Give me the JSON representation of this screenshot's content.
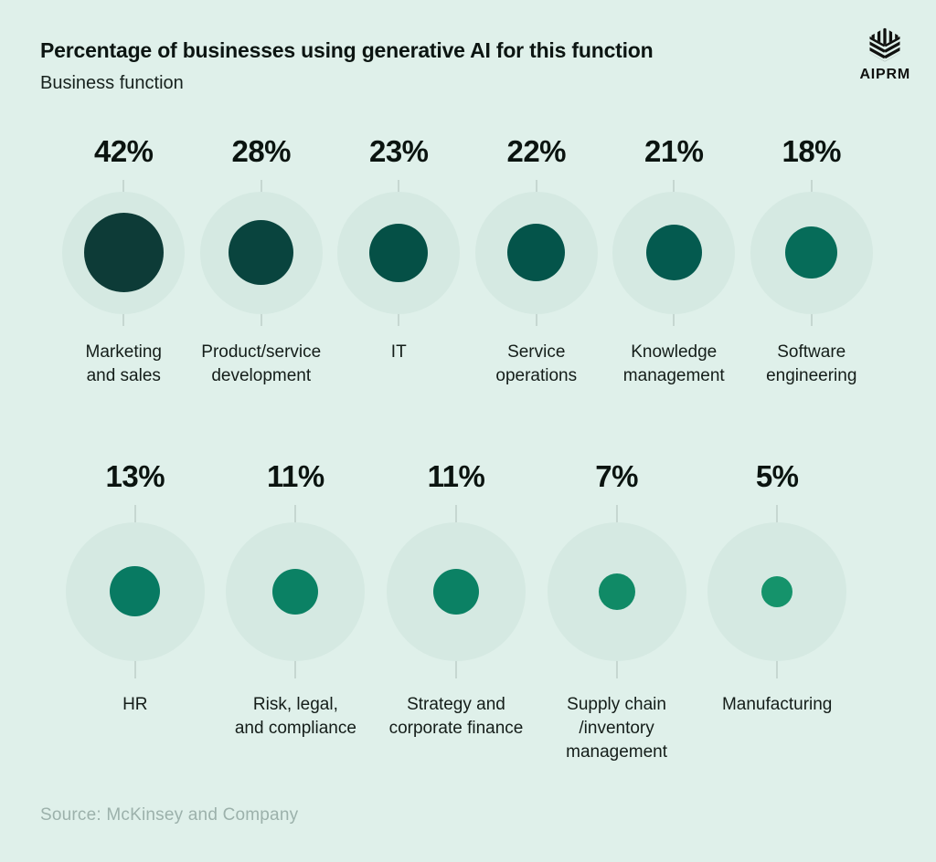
{
  "header": {
    "title": "Percentage of businesses using generative AI for this function",
    "subtitle": "Business function",
    "brand": "AIPRM"
  },
  "chart_data": {
    "type": "bubble",
    "title": "Percentage of businesses using generative AI for this function",
    "xlabel": "Business function",
    "unit": "%",
    "value_range": [
      0,
      100
    ],
    "legend": "none",
    "palette": {
      "background": "#dff0ea",
      "bubble_outer": "#d5e9e2",
      "tick_line": "#c6d7d1",
      "text": "#0c1512",
      "source_text": "#9cb1ab"
    },
    "rows": [
      {
        "items": [
          {
            "label": "Marketing and sales",
            "label_lines": "Marketing\nand sales",
            "value": 42,
            "value_label": "42%",
            "color": "#0d3b37"
          },
          {
            "label": "Product/service development",
            "label_lines": "Product/service\ndevelopment",
            "value": 28,
            "value_label": "28%",
            "color": "#09443e"
          },
          {
            "label": "IT",
            "label_lines": "IT",
            "value": 23,
            "value_label": "23%",
            "color": "#055046"
          },
          {
            "label": "Service operations",
            "label_lines": "Service\noperations",
            "value": 22,
            "value_label": "22%",
            "color": "#04544a"
          },
          {
            "label": "Knowledge management",
            "label_lines": "Knowledge\nmanagement",
            "value": 21,
            "value_label": "21%",
            "color": "#045a4f"
          },
          {
            "label": "Software engineering",
            "label_lines": "Software\nengineering",
            "value": 18,
            "value_label": "18%",
            "color": "#066c59"
          }
        ]
      },
      {
        "items": [
          {
            "label": "HR",
            "label_lines": "HR",
            "value": 13,
            "value_label": "13%",
            "color": "#087a62"
          },
          {
            "label": "Risk, legal, and compliance",
            "label_lines": "Risk, legal,\nand compliance",
            "value": 11,
            "value_label": "11%",
            "color": "#0b8164"
          },
          {
            "label": "Strategy and corporate finance",
            "label_lines": "Strategy and\ncorporate finance",
            "value": 11,
            "value_label": "11%",
            "color": "#0b8164"
          },
          {
            "label": "Supply chain /inventory management",
            "label_lines": "Supply chain\n/inventory\nmanagement",
            "value": 7,
            "value_label": "7%",
            "color": "#108a66"
          },
          {
            "label": "Manufacturing",
            "label_lines": "Manufacturing",
            "value": 5,
            "value_label": "5%",
            "color": "#15936b"
          }
        ]
      }
    ]
  },
  "footer": {
    "source": "Source: McKinsey and Company"
  }
}
